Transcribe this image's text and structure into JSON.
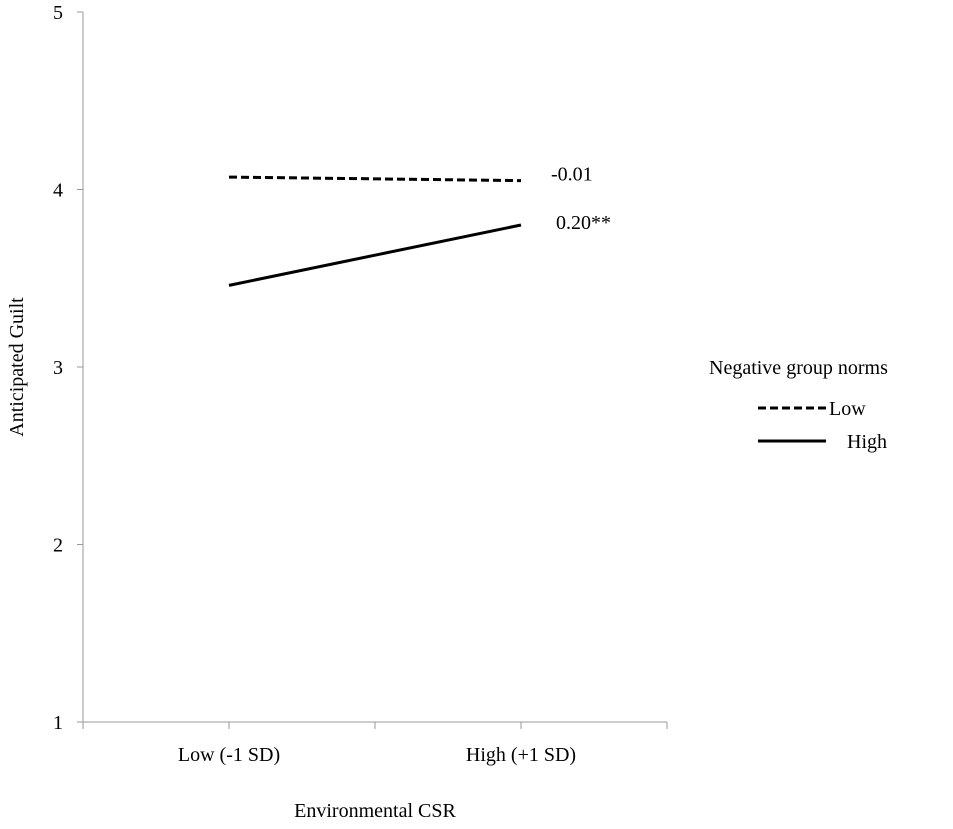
{
  "chart_data": {
    "type": "line",
    "categories": [
      "Low (-1 SD)",
      "High (+1 SD)"
    ],
    "series": [
      {
        "name": "Low",
        "values": [
          4.07,
          4.05
        ],
        "style": "dashed",
        "slope_label": "-0.01"
      },
      {
        "name": "High",
        "values": [
          3.46,
          3.8
        ],
        "style": "solid",
        "slope_label": "0.20**"
      }
    ],
    "xlabel": "Environmental  CSR",
    "ylabel": "Anticipated  Guilt",
    "ylim": [
      1,
      5
    ],
    "yticks": [
      1,
      2,
      3,
      4,
      5
    ],
    "legend_title": "Negative group norms",
    "legend_position": "right",
    "grid": false,
    "line_color": "#000000"
  }
}
